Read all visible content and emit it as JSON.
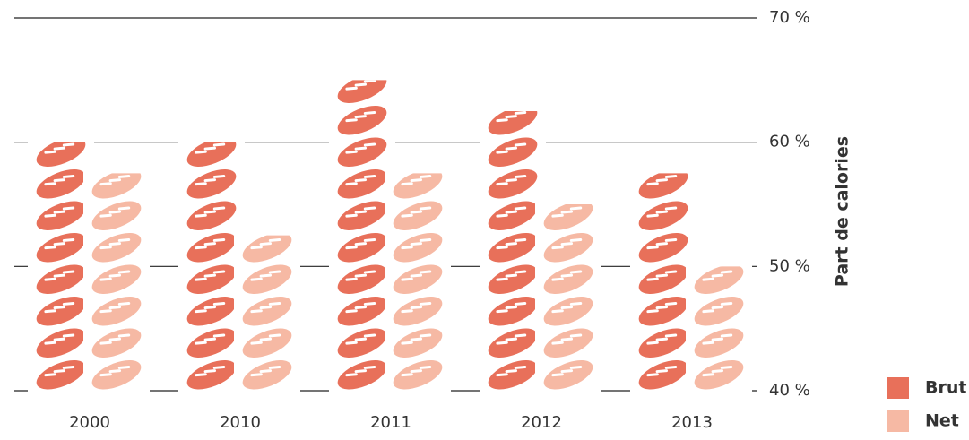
{
  "chart_data": {
    "type": "pictogram-bar",
    "y_label": "Part de calories",
    "categories": [
      "2000",
      "2010",
      "2011",
      "2012",
      "2013"
    ],
    "series": [
      {
        "name": "Brut",
        "color": "#e8705a",
        "values": [
          60,
          60,
          65,
          62.5,
          57.5
        ]
      },
      {
        "name": "Net",
        "color": "#f6b9a4",
        "values": [
          57.5,
          52.5,
          57.5,
          55,
          50
        ]
      }
    ],
    "ylim": [
      40,
      70
    ],
    "yticks": [
      {
        "value": 40,
        "label": "40 %"
      },
      {
        "value": 50,
        "label": "50 %"
      },
      {
        "value": 60,
        "label": "60 %"
      },
      {
        "value": 70,
        "label": "70 %"
      }
    ],
    "grid": true,
    "legend": "bottom-right"
  }
}
